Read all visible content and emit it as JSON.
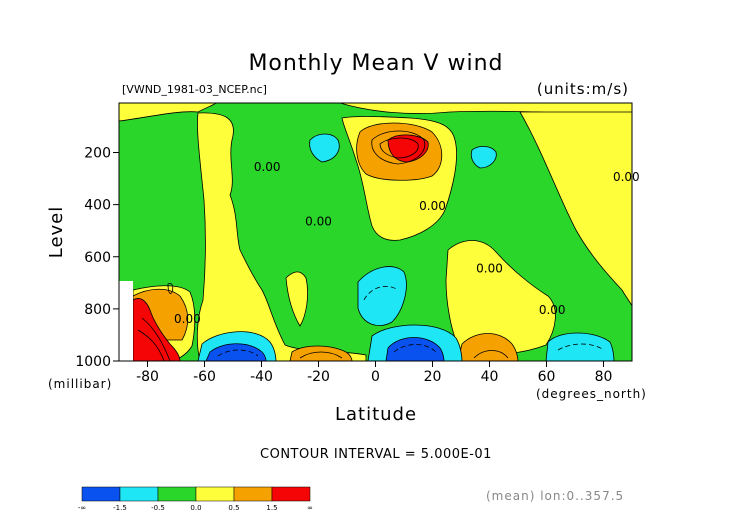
{
  "chart_data": {
    "type": "heatmap",
    "title": "Monthly Mean V wind",
    "file_label": "[VWND_1981-03_NCEP.nc]",
    "units_label": "(units:m/s)",
    "xlabel": "Latitude",
    "ylabel": "Level",
    "x_unit": "(degrees_north)",
    "y_unit": "(millibar)",
    "xlim": [
      -90,
      90
    ],
    "ylim": [
      1000,
      10
    ],
    "xticks": [
      -80,
      -60,
      -40,
      -20,
      0,
      20,
      40,
      60,
      80
    ],
    "yticks": [
      200,
      400,
      600,
      800,
      1000
    ],
    "contour_interval_text": "CONTOUR INTERVAL = 5.000E-01",
    "footnote": "(mean) lon:0..357.5",
    "contour_labels": [
      {
        "text": "0.00",
        "x": -38,
        "y": 270
      },
      {
        "text": "0.00",
        "x": -20,
        "y": 480
      },
      {
        "text": "0.00",
        "x": 20,
        "y": 420
      },
      {
        "text": "0.00",
        "x": 40,
        "y": 660
      },
      {
        "text": "0.00",
        "x": 62,
        "y": 820
      },
      {
        "text": "0.00",
        "x": 88,
        "y": 310
      },
      {
        "text": "0.00",
        "x": -66,
        "y": 855
      }
    ],
    "colorbar": {
      "colors": [
        "#0a52f0",
        "#1ee6f5",
        "#2ad62a",
        "#fffe3a",
        "#f5a100",
        "#f50505"
      ],
      "labels": [
        "-∞",
        "-1.5",
        "-0.5",
        "0.0",
        "0.5",
        "1.5",
        "∞"
      ]
    },
    "field_regions": [
      {
        "level": 0,
        "x": [
          -88,
          -20,
          20,
          88
        ],
        "y": [
          10,
          40,
          30,
          45
        ]
      },
      {
        "level": 1,
        "x": [
          -70,
          -40,
          -40,
          -70
        ],
        "y": [
          100,
          100,
          940,
          940
        ]
      },
      {
        "level": 1,
        "x": [
          5,
          25,
          25,
          5
        ],
        "y": [
          100,
          100,
          300,
          300
        ]
      },
      {
        "level": 2,
        "x": [
          6,
          15,
          15,
          6
        ],
        "y": [
          140,
          140,
          210,
          210
        ]
      },
      {
        "level": 1,
        "x": [
          -88,
          -72,
          -72,
          -88
        ],
        "y": [
          700,
          700,
          1000,
          1000
        ]
      },
      {
        "level": 2,
        "x": [
          -88,
          -80,
          -80,
          -88
        ],
        "y": [
          800,
          800,
          1000,
          1000
        ]
      },
      {
        "level": -1,
        "x": [
          -14,
          -6,
          -6,
          -14
        ],
        "y": [
          160,
          160,
          220,
          220
        ]
      },
      {
        "level": -1,
        "x": [
          32,
          38,
          38,
          32
        ],
        "y": [
          180,
          180,
          240,
          240
        ]
      },
      {
        "level": -1,
        "x": [
          -4,
          4,
          4,
          -4
        ],
        "y": [
          640,
          640,
          850,
          850
        ]
      },
      {
        "level": -2,
        "x": [
          5,
          15,
          15,
          5
        ],
        "y": [
          920,
          920,
          1000,
          1000
        ]
      },
      {
        "level": -1,
        "x": [
          -60,
          -45,
          -45,
          -60
        ],
        "y": [
          940,
          940,
          1000,
          1000
        ]
      },
      {
        "level": -1,
        "x": [
          60,
          78,
          78,
          60
        ],
        "y": [
          950,
          950,
          1000,
          1000
        ]
      }
    ]
  }
}
